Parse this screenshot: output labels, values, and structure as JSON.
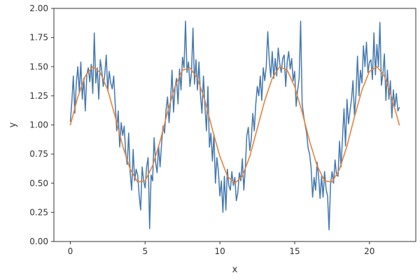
{
  "chart_data": {
    "type": "line",
    "title": "",
    "xlabel": "x",
    "ylabel": "y",
    "xlim": [
      -1.1,
      23.1
    ],
    "ylim": [
      0,
      2
    ],
    "xticks": [
      0,
      5,
      10,
      15,
      20
    ],
    "yticks": [
      0,
      0.25,
      0.5,
      0.75,
      1,
      1.25,
      1.5,
      1.75,
      2
    ],
    "xtick_labels": [
      "0",
      "5",
      "10",
      "15",
      "20"
    ],
    "ytick_labels": [
      "0.00",
      "0.25",
      "0.50",
      "0.75",
      "1.00",
      "1.25",
      "1.50",
      "1.75",
      "2.00"
    ],
    "grid": false,
    "legend": "none",
    "series": [
      {
        "color": "#4478AE",
        "description_points": [
          [
            0.0,
            1.03
          ],
          [
            0.1,
            1.2
          ],
          [
            0.2,
            1.42
          ],
          [
            0.3,
            1.1
          ],
          [
            0.4,
            1.36
          ],
          [
            0.5,
            1.5
          ],
          [
            0.6,
            1.28
          ],
          [
            0.7,
            1.54
          ],
          [
            0.8,
            1.22
          ],
          [
            0.9,
            1.4
          ],
          [
            1.0,
            1.12
          ],
          [
            1.1,
            1.43
          ],
          [
            1.2,
            1.49
          ],
          [
            1.3,
            1.37
          ],
          [
            1.4,
            1.52
          ],
          [
            1.5,
            1.27
          ],
          [
            1.6,
            1.79
          ],
          [
            1.7,
            1.36
          ],
          [
            1.8,
            1.49
          ],
          [
            1.9,
            1.22
          ],
          [
            2.0,
            1.56
          ],
          [
            2.1,
            1.47
          ],
          [
            2.2,
            1.33
          ],
          [
            2.3,
            1.43
          ],
          [
            2.4,
            1.6
          ],
          [
            2.5,
            1.29
          ],
          [
            2.6,
            1.46
          ],
          [
            2.7,
            1.36
          ],
          [
            2.8,
            1.31
          ],
          [
            2.9,
            1.42
          ],
          [
            3.0,
            1.18
          ],
          [
            3.1,
            0.95
          ],
          [
            3.2,
            1.12
          ],
          [
            3.3,
            0.81
          ],
          [
            3.4,
            1.02
          ],
          [
            3.5,
            0.91
          ],
          [
            3.6,
            0.99
          ],
          [
            3.7,
            0.76
          ],
          [
            3.8,
            0.66
          ],
          [
            3.9,
            0.93
          ],
          [
            4.0,
            0.59
          ],
          [
            4.1,
            0.44
          ],
          [
            4.2,
            0.79
          ],
          [
            4.3,
            0.52
          ],
          [
            4.4,
            0.62
          ],
          [
            4.5,
            0.57
          ],
          [
            4.6,
            0.4
          ],
          [
            4.7,
            0.27
          ],
          [
            4.8,
            0.64
          ],
          [
            4.9,
            0.52
          ],
          [
            5.0,
            0.46
          ],
          [
            5.1,
            0.64
          ],
          [
            5.2,
            0.72
          ],
          [
            5.3,
            0.11
          ],
          [
            5.4,
            0.57
          ],
          [
            5.5,
            0.52
          ],
          [
            5.6,
            0.89
          ],
          [
            5.7,
            0.68
          ],
          [
            5.8,
            0.59
          ],
          [
            5.9,
            0.82
          ],
          [
            6.0,
            0.64
          ],
          [
            6.1,
            0.84
          ],
          [
            6.2,
            0.99
          ],
          [
            6.3,
            0.93
          ],
          [
            6.4,
            1.13
          ],
          [
            6.5,
            1.24
          ],
          [
            6.6,
            1.02
          ],
          [
            6.7,
            1.2
          ],
          [
            6.8,
            1.47
          ],
          [
            6.9,
            1.11
          ],
          [
            7.0,
            1.32
          ],
          [
            7.1,
            1.4
          ],
          [
            7.2,
            1.18
          ],
          [
            7.3,
            1.48
          ],
          [
            7.4,
            1.3
          ],
          [
            7.5,
            1.58
          ],
          [
            7.6,
            1.49
          ],
          [
            7.7,
            1.89
          ],
          [
            7.8,
            1.45
          ],
          [
            7.9,
            1.54
          ],
          [
            8.0,
            1.33
          ],
          [
            8.1,
            1.45
          ],
          [
            8.2,
            1.83
          ],
          [
            8.3,
            1.35
          ],
          [
            8.4,
            1.56
          ],
          [
            8.5,
            1.3
          ],
          [
            8.6,
            1.54
          ],
          [
            8.7,
            1.26
          ],
          [
            8.8,
            1.1
          ],
          [
            8.9,
            1.42
          ],
          [
            9.0,
            1.16
          ],
          [
            9.1,
            0.95
          ],
          [
            9.2,
            1.33
          ],
          [
            9.3,
            0.81
          ],
          [
            9.4,
            0.93
          ],
          [
            9.5,
            0.69
          ],
          [
            9.6,
            0.92
          ],
          [
            9.7,
            0.5
          ],
          [
            9.8,
            0.72
          ],
          [
            9.9,
            0.6
          ],
          [
            10.0,
            0.39
          ],
          [
            10.1,
            0.52
          ],
          [
            10.2,
            0.25
          ],
          [
            10.3,
            0.56
          ],
          [
            10.4,
            0.27
          ],
          [
            10.5,
            0.62
          ],
          [
            10.6,
            0.48
          ],
          [
            10.7,
            0.44
          ],
          [
            10.8,
            0.6
          ],
          [
            10.9,
            0.48
          ],
          [
            11.0,
            0.55
          ],
          [
            11.1,
            0.35
          ],
          [
            11.2,
            0.42
          ],
          [
            11.3,
            0.59
          ],
          [
            11.4,
            0.52
          ],
          [
            11.5,
            0.71
          ],
          [
            11.6,
            0.44
          ],
          [
            11.7,
            0.63
          ],
          [
            11.8,
            0.91
          ],
          [
            11.9,
            0.98
          ],
          [
            12.0,
            0.78
          ],
          [
            12.1,
            0.88
          ],
          [
            12.2,
            1.1
          ],
          [
            12.3,
            0.95
          ],
          [
            12.4,
            1.18
          ],
          [
            12.5,
            1.33
          ],
          [
            12.6,
            1.25
          ],
          [
            12.7,
            1.42
          ],
          [
            12.8,
            1.21
          ],
          [
            12.9,
            1.49
          ],
          [
            13.0,
            1.38
          ],
          [
            13.1,
            1.5
          ],
          [
            13.2,
            1.8
          ],
          [
            13.3,
            1.56
          ],
          [
            13.4,
            1.41
          ],
          [
            13.5,
            1.63
          ],
          [
            13.6,
            1.4
          ],
          [
            13.7,
            1.57
          ],
          [
            13.8,
            1.42
          ],
          [
            13.9,
            1.66
          ],
          [
            14.0,
            1.53
          ],
          [
            14.1,
            1.45
          ],
          [
            14.2,
            1.57
          ],
          [
            14.3,
            1.6
          ],
          [
            14.4,
            1.33
          ],
          [
            14.5,
            1.54
          ],
          [
            14.6,
            1.63
          ],
          [
            14.7,
            1.48
          ],
          [
            14.8,
            1.57
          ],
          [
            14.9,
            1.38
          ],
          [
            15.0,
            1.46
          ],
          [
            15.1,
            1.16
          ],
          [
            15.2,
            1.3
          ],
          [
            15.3,
            1.4
          ],
          [
            15.4,
            1.89
          ],
          [
            15.5,
            1.18
          ],
          [
            15.6,
            1.08
          ],
          [
            15.7,
            1.0
          ],
          [
            15.8,
            0.93
          ],
          [
            15.9,
            0.8
          ],
          [
            16.0,
            0.75
          ],
          [
            16.1,
            0.63
          ],
          [
            16.2,
            0.38
          ],
          [
            16.3,
            0.55
          ],
          [
            16.4,
            0.44
          ],
          [
            16.5,
            0.68
          ],
          [
            16.6,
            0.56
          ],
          [
            16.7,
            0.37
          ],
          [
            16.8,
            0.56
          ],
          [
            16.9,
            0.38
          ],
          [
            17.0,
            0.6
          ],
          [
            17.1,
            0.45
          ],
          [
            17.2,
            0.39
          ],
          [
            17.3,
            0.1
          ],
          [
            17.4,
            0.49
          ],
          [
            17.5,
            0.6
          ],
          [
            17.6,
            0.5
          ],
          [
            17.7,
            0.7
          ],
          [
            17.8,
            0.57
          ],
          [
            17.9,
            0.56
          ],
          [
            18.0,
            0.86
          ],
          [
            18.1,
            0.64
          ],
          [
            18.2,
            0.89
          ],
          [
            18.3,
            1.14
          ],
          [
            18.4,
            0.82
          ],
          [
            18.5,
            1.22
          ],
          [
            18.6,
            1.01
          ],
          [
            18.7,
            1.12
          ],
          [
            18.8,
            1.22
          ],
          [
            18.9,
            1.38
          ],
          [
            19.0,
            1.08
          ],
          [
            19.1,
            1.26
          ],
          [
            19.2,
            1.59
          ],
          [
            19.3,
            1.25
          ],
          [
            19.4,
            1.47
          ],
          [
            19.5,
            1.36
          ],
          [
            19.6,
            1.68
          ],
          [
            19.7,
            1.5
          ],
          [
            19.8,
            1.71
          ],
          [
            19.9,
            1.45
          ],
          [
            20.0,
            1.54
          ],
          [
            20.1,
            1.56
          ],
          [
            20.2,
            1.39
          ],
          [
            20.3,
            1.79
          ],
          [
            20.4,
            1.43
          ],
          [
            20.5,
            1.69
          ],
          [
            20.6,
            1.5
          ],
          [
            20.7,
            1.88
          ],
          [
            20.8,
            1.34
          ],
          [
            20.9,
            1.44
          ],
          [
            21.0,
            1.61
          ],
          [
            21.1,
            1.21
          ],
          [
            21.2,
            1.47
          ],
          [
            21.3,
            1.22
          ],
          [
            21.4,
            1.38
          ],
          [
            21.5,
            1.06
          ],
          [
            21.6,
            1.3
          ],
          [
            21.7,
            1.16
          ],
          [
            21.8,
            1.27
          ],
          [
            21.9,
            1.12
          ],
          [
            22.0,
            1.15
          ]
        ]
      },
      {
        "color": "#E8823A",
        "description_points": [
          [
            0.0,
            1.0
          ],
          [
            0.5,
            1.24
          ],
          [
            1.0,
            1.42
          ],
          [
            1.5,
            1.5
          ],
          [
            2.0,
            1.45
          ],
          [
            2.5,
            1.3
          ],
          [
            3.0,
            1.07
          ],
          [
            3.5,
            0.82
          ],
          [
            4.0,
            0.62
          ],
          [
            4.5,
            0.51
          ],
          [
            5.0,
            0.52
          ],
          [
            5.5,
            0.65
          ],
          [
            6.0,
            0.86
          ],
          [
            6.5,
            1.11
          ],
          [
            7.0,
            1.33
          ],
          [
            7.5,
            1.47
          ],
          [
            8.0,
            1.49
          ],
          [
            8.5,
            1.4
          ],
          [
            9.0,
            1.21
          ],
          [
            9.5,
            0.96
          ],
          [
            10.0,
            0.73
          ],
          [
            10.5,
            0.56
          ],
          [
            11.0,
            0.5
          ],
          [
            11.5,
            0.56
          ],
          [
            12.0,
            0.73
          ],
          [
            12.5,
            0.97
          ],
          [
            13.0,
            1.21
          ],
          [
            13.5,
            1.4
          ],
          [
            14.0,
            1.5
          ],
          [
            14.5,
            1.47
          ],
          [
            15.0,
            1.33
          ],
          [
            15.5,
            1.11
          ],
          [
            16.0,
            0.86
          ],
          [
            16.5,
            0.65
          ],
          [
            17.0,
            0.52
          ],
          [
            17.5,
            0.51
          ],
          [
            18.0,
            0.62
          ],
          [
            18.5,
            0.82
          ],
          [
            19.0,
            1.07
          ],
          [
            19.5,
            1.3
          ],
          [
            20.0,
            1.46
          ],
          [
            20.5,
            1.5
          ],
          [
            21.0,
            1.42
          ],
          [
            21.5,
            1.23
          ],
          [
            22.0,
            1.0
          ]
        ]
      }
    ]
  }
}
